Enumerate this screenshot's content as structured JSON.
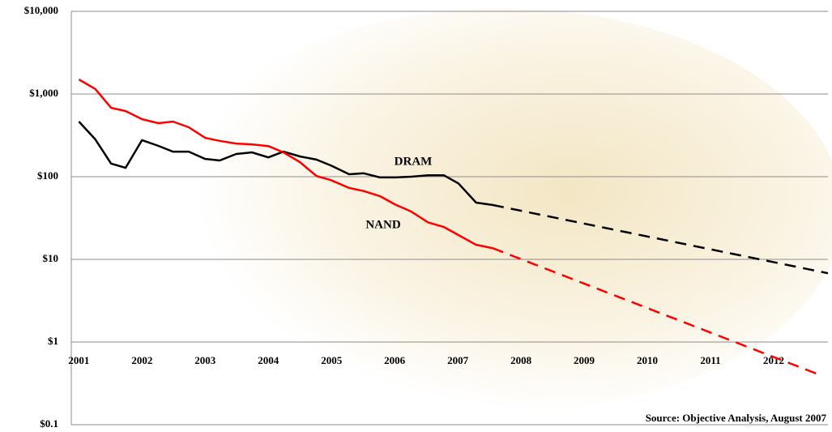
{
  "chart_data": {
    "type": "line",
    "log_scale_y": true,
    "grid": true,
    "source": "Source: Objective Analysis, August 2007",
    "xlim": [
      2000.88,
      2012.86
    ],
    "xticks": [
      2001,
      2002,
      2003,
      2004,
      2005,
      2006,
      2007,
      2008,
      2009,
      2010,
      2011,
      2012
    ],
    "ylim": [
      0.1,
      10000
    ],
    "yticks": [
      {
        "value": 0.1,
        "label": "$0.1"
      },
      {
        "value": 1,
        "label": "$1"
      },
      {
        "value": 10,
        "label": "$10"
      },
      {
        "value": 100,
        "label": "$100"
      },
      {
        "value": 1000,
        "label": "$1,000"
      },
      {
        "value": 10000,
        "label": "$10,000"
      }
    ],
    "series": [
      {
        "name": "DRAM",
        "color": "#000000",
        "x": [
          2001.0,
          2001.26,
          2001.51,
          2001.74,
          2002.0,
          2002.26,
          2002.49,
          2002.74,
          2003.0,
          2003.23,
          2003.49,
          2003.74,
          2004.0,
          2004.24,
          2004.5,
          2004.76,
          2004.99,
          2005.28,
          2005.51,
          2005.77,
          2006.01,
          2006.26,
          2006.53,
          2006.78,
          2007.01,
          2007.29,
          2007.55
        ],
        "values": [
          464,
          283,
          144,
          128,
          277,
          236,
          201,
          201,
          164,
          157,
          188,
          197,
          171,
          201,
          176,
          161,
          137,
          107,
          110,
          98,
          98,
          100,
          104,
          104,
          83,
          48.6,
          45.5
        ],
        "forecast": {
          "x": [
            2007.55,
            2012.86
          ],
          "values": [
            45.5,
            6.8
          ]
        }
      },
      {
        "name": "NAND",
        "color": "#ff0000",
        "x": [
          2001.0,
          2001.26,
          2001.51,
          2001.74,
          2002.0,
          2002.26,
          2002.49,
          2002.74,
          2003.0,
          2003.23,
          2003.49,
          2003.74,
          2004.0,
          2004.24,
          2004.5,
          2004.76,
          2004.99,
          2005.28,
          2005.51,
          2005.77,
          2006.01,
          2006.26,
          2006.53,
          2006.78,
          2007.01,
          2007.29,
          2007.55
        ],
        "values": [
          1500,
          1150,
          681,
          622,
          497,
          444,
          464,
          396,
          295,
          271,
          252,
          246,
          235,
          197,
          150,
          102,
          91,
          73,
          67,
          58,
          46,
          38,
          28,
          24.6,
          19.7,
          15,
          13.7
        ],
        "forecast": {
          "x": [
            2007.55,
            2012.77
          ],
          "values": [
            13.7,
            0.39
          ]
        }
      }
    ]
  }
}
